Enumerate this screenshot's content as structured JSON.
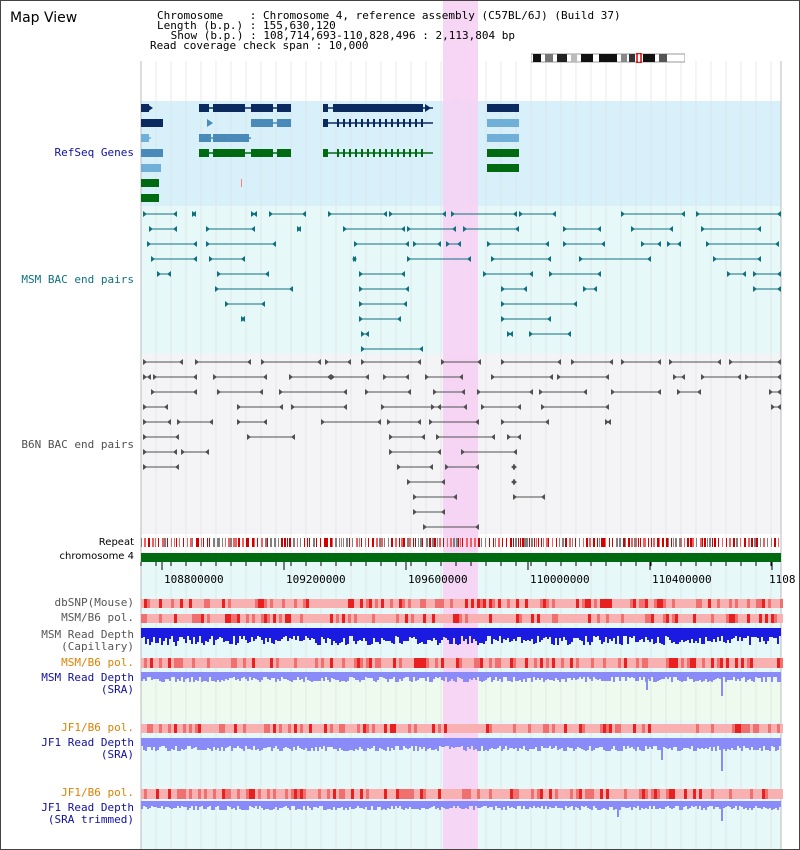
{
  "title": "Map View",
  "info": {
    "chromosome": "Chromosome    : Chromosome 4, reference assembly (C57BL/6J) (Build 37)",
    "length": "Length (b.p.) : 155,630,120",
    "show": " Show (b.p.) : 108,714,693-110,828,496 : 2,113,804 bp",
    "span": "Read coverage check span : 10,000"
  },
  "tracks": {
    "refseq": {
      "label": "RefSeq Genes",
      "color": "#1010a0"
    },
    "msm_bac": {
      "label": "MSM BAC end pairs",
      "color": "#107080"
    },
    "b6n_bac": {
      "label": "B6N BAC end pairs",
      "color": "#505050"
    },
    "repeat": {
      "label": "Repeat"
    },
    "chromosome": {
      "label": "chromosome 4"
    },
    "dbsnp": {
      "label": "dbSNP(Mouse)"
    },
    "msm_pol1": {
      "label": "MSM/B6 pol."
    },
    "msm_depth_cap": {
      "label": "MSM Read Depth\n(Capillary)"
    },
    "msm_pol2": {
      "label": "MSM/B6 pol.",
      "color": "#e08000"
    },
    "msm_depth_sra": {
      "label": "MSM Read Depth\n(SRA)",
      "color": "#1010a0"
    },
    "jf1_pol1": {
      "label": "JF1/B6 pol.",
      "color": "#e08000"
    },
    "jf1_depth_sra": {
      "label": "JF1 Read Depth\n(SRA)",
      "color": "#1010a0"
    },
    "jf1_pol2": {
      "label": "JF1/B6 pol.",
      "color": "#e08000"
    },
    "jf1_depth_trim": {
      "label": "JF1 Read Depth\n(SRA trimmed)",
      "color": "#1010a0"
    }
  },
  "axis": {
    "ticks": [
      "108800000",
      "109200000",
      "109600000",
      "110000000",
      "110400000",
      "1108"
    ]
  },
  "colors": {
    "highlight": "#f6d2f4",
    "refseq_bg": "#d8f0fa",
    "msm_bg": "#e6f8f8",
    "b6n_bg": "#f4f4f6",
    "lower_bg": "#e6f8f8",
    "sra_bg": "#eefaee",
    "gene_dark": "#0a2a60",
    "gene_mid": "#4a8ab8",
    "gene_light": "#70b0d8",
    "gene_green": "#006a10",
    "chrom_green": "#006a10",
    "depth_dark": "#1a1ae0",
    "depth_light": "#8a8af8"
  }
}
